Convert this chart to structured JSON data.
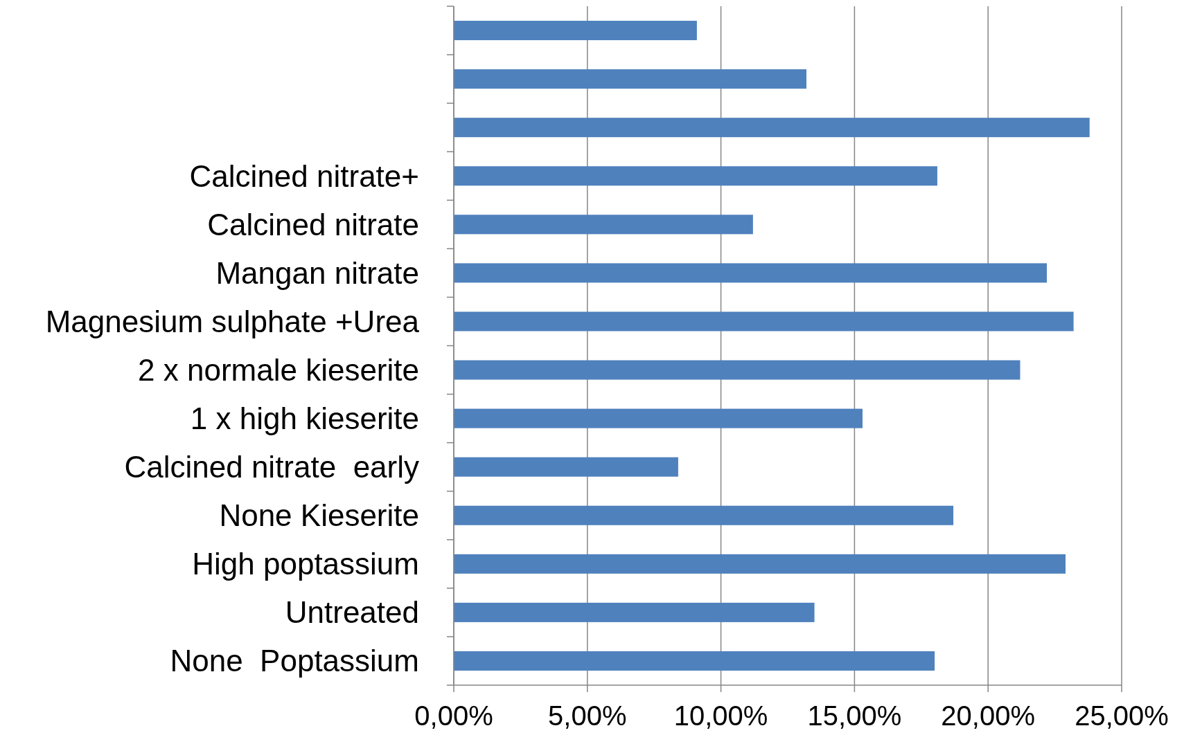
{
  "chart_data": {
    "type": "bar",
    "orientation": "horizontal",
    "categories": [
      null,
      null,
      null,
      "Calcined nitrate+",
      "Calcined nitrate",
      "Mangan nitrate",
      "Magnesium sulphate +Urea",
      "2 x normale kieserite",
      "1 x high kieserite",
      "Calcined nitrate  early",
      "None Kieserite",
      "High poptassium",
      "Untreated",
      "None  Poptassium"
    ],
    "values": [
      9.1,
      13.2,
      23.8,
      18.1,
      11.2,
      22.2,
      23.2,
      21.2,
      15.3,
      8.4,
      18.7,
      22.9,
      13.5,
      18.0
    ],
    "color": "#4f81bd",
    "xlim": [
      0,
      25
    ],
    "xticks": [
      {
        "value": 0,
        "label": "0,00%"
      },
      {
        "value": 5,
        "label": "5,00%"
      },
      {
        "value": 10,
        "label": "10,00%"
      },
      {
        "value": 15,
        "label": "15,00%"
      },
      {
        "value": 20,
        "label": "20,00%"
      },
      {
        "value": 25,
        "label": "25,00%"
      }
    ],
    "grid": "x"
  }
}
